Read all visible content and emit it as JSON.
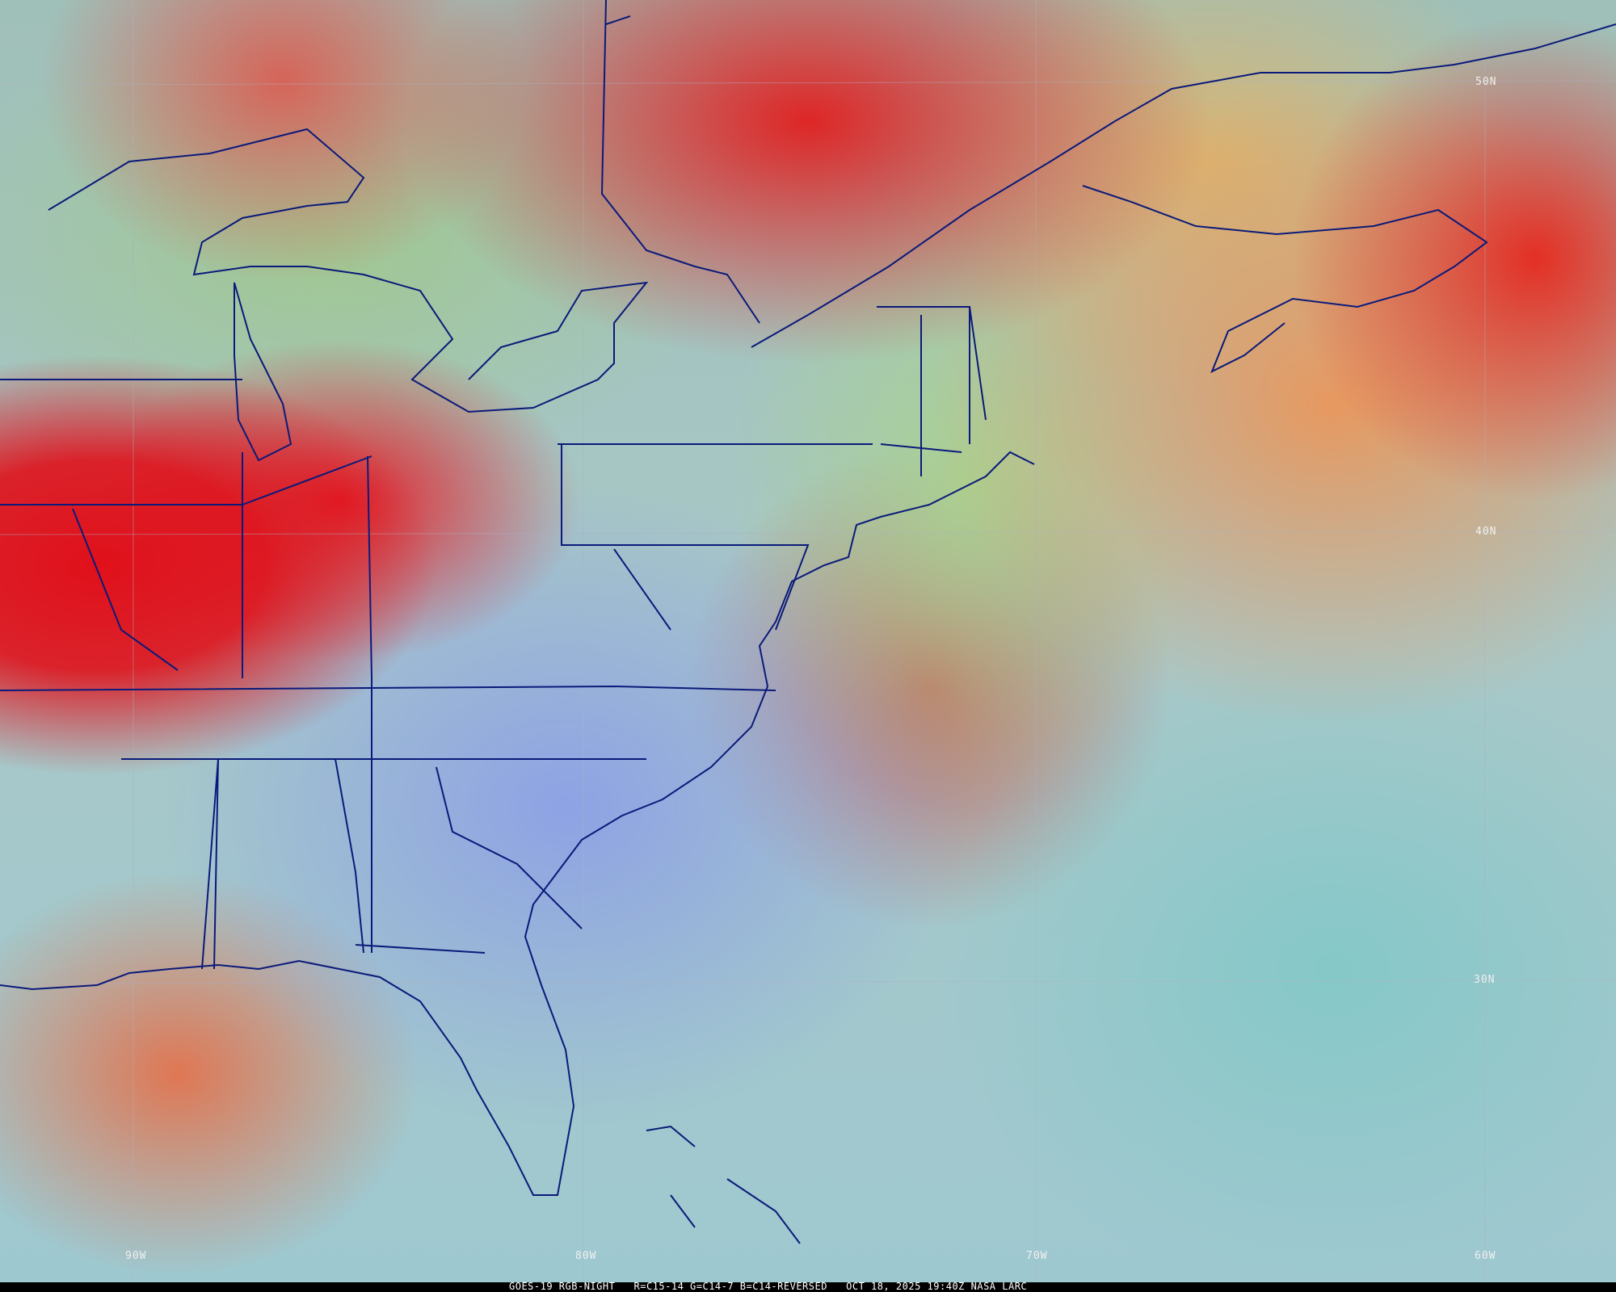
{
  "caption": "GOES-19 RGB-NIGHT   R=C15-14 G=C14-7 B=C14-REVERSED   OCT 18, 2025 19:40Z NASA LARC",
  "latitude_labels": [
    "50N",
    "40N",
    "30N"
  ],
  "longitude_labels": [
    "90W",
    "80W",
    "70W",
    "60W"
  ],
  "colors": {
    "borders": "#0a1a7a",
    "gridlines": "#9aa0b0",
    "caption_bg": "#000000",
    "caption_text": "#ffffff"
  }
}
